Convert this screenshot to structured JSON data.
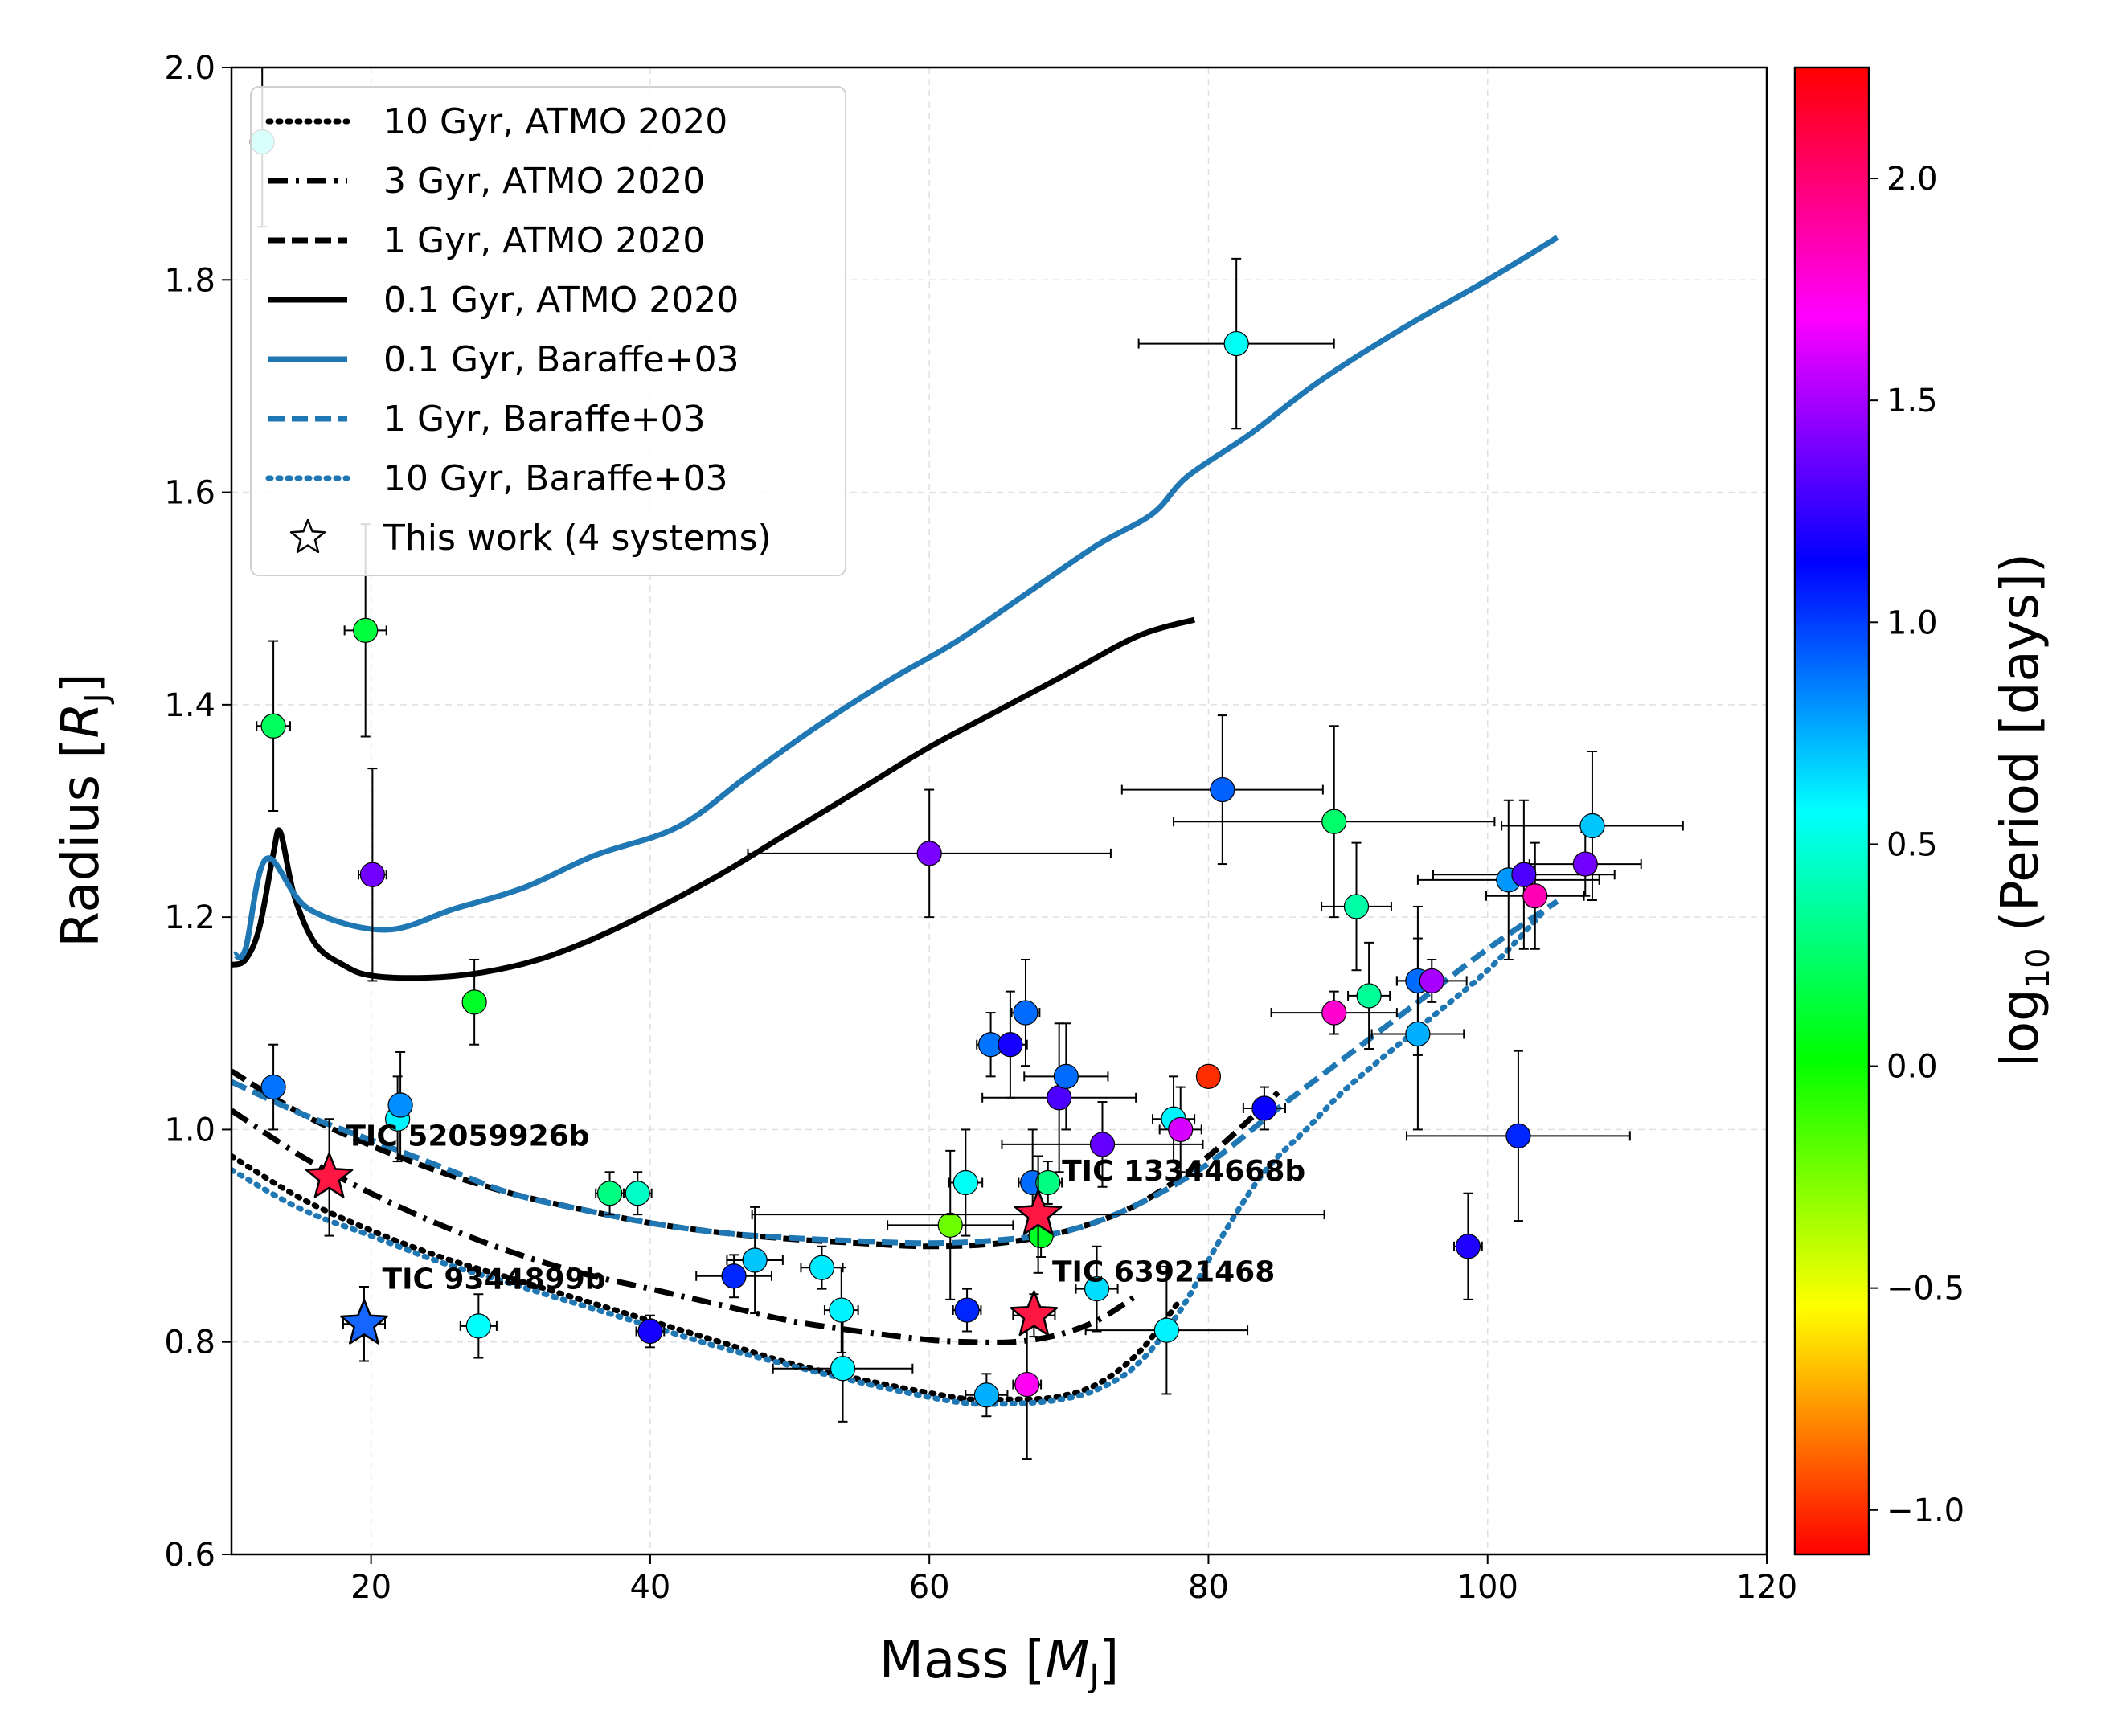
{
  "chart_data": {
    "type": "scatter",
    "title": "",
    "xlabel": "Mass [",
    "xlabel_sym": "M",
    "xlabel_sub": "J",
    "xlabel_end": "]",
    "ylabel": "Radius [",
    "ylabel_sym": "R",
    "ylabel_sub": "J",
    "ylabel_end": "]",
    "xlim": [
      10,
      120
    ],
    "ylim": [
      0.6,
      2.0
    ],
    "xticks": [
      20,
      40,
      60,
      80,
      100,
      120
    ],
    "xtick_labels": [
      "20",
      "40",
      "60",
      "80",
      "100",
      "120"
    ],
    "yticks": [
      0.6,
      0.8,
      1.0,
      1.2,
      1.4,
      1.6,
      1.8,
      2.0
    ],
    "ytick_labels": [
      "0.6",
      "0.8",
      "1.0",
      "1.2",
      "1.4",
      "1.6",
      "1.8",
      "2.0"
    ],
    "grid": true,
    "legend_position": "top-left",
    "colorbar": {
      "label_pre": "log",
      "label_sub": "10",
      "label_post": " (Period [days])",
      "range": [
        -1.1,
        2.25
      ],
      "ticks": [
        -1.0,
        -0.5,
        0.0,
        0.5,
        1.0,
        1.5,
        2.0
      ],
      "tick_labels": [
        "−1.0",
        "−0.5",
        "0.0",
        "0.5",
        "1.0",
        "1.5",
        "2.0"
      ]
    },
    "series": [
      {
        "name": "10 Gyr, ATMO 2020",
        "color": "#000000",
        "style": "dotted",
        "x": [
          10,
          15,
          20,
          25,
          30,
          35,
          40,
          45,
          50,
          55,
          60,
          63,
          66,
          69,
          72,
          75,
          78
        ],
        "y": [
          0.975,
          0.935,
          0.905,
          0.88,
          0.86,
          0.84,
          0.82,
          0.8,
          0.78,
          0.765,
          0.752,
          0.746,
          0.746,
          0.748,
          0.76,
          0.79,
          0.84
        ]
      },
      {
        "name": "3 Gyr, ATMO 2020",
        "color": "#000000",
        "style": "dashdot",
        "x": [
          10,
          15,
          20,
          25,
          30,
          35,
          40,
          45,
          50,
          55,
          60,
          63,
          66,
          69,
          72,
          75
        ],
        "y": [
          1.018,
          0.975,
          0.94,
          0.91,
          0.885,
          0.865,
          0.85,
          0.835,
          0.82,
          0.81,
          0.802,
          0.8,
          0.8,
          0.806,
          0.82,
          0.845
        ]
      },
      {
        "name": "1 Gyr, ATMO 2020",
        "color": "#000000",
        "style": "dashed",
        "x": [
          10,
          15,
          20,
          25,
          30,
          35,
          40,
          45,
          50,
          55,
          60,
          65,
          70,
          75,
          80,
          85
        ],
        "y": [
          1.055,
          1.015,
          0.985,
          0.96,
          0.94,
          0.925,
          0.912,
          0.903,
          0.897,
          0.893,
          0.89,
          0.893,
          0.905,
          0.93,
          0.975,
          1.035
        ]
      },
      {
        "name": "0.1 Gyr, ATMO 2020",
        "color": "#000000",
        "style": "solid",
        "x": [
          10,
          11,
          12,
          13,
          13.5,
          14.5,
          16,
          18,
          20,
          24,
          28,
          32,
          36,
          40,
          45,
          50,
          55,
          60,
          65,
          70,
          75,
          79
        ],
        "y": [
          1.155,
          1.16,
          1.19,
          1.26,
          1.28,
          1.22,
          1.175,
          1.155,
          1.145,
          1.143,
          1.148,
          1.16,
          1.18,
          1.205,
          1.24,
          1.28,
          1.32,
          1.36,
          1.395,
          1.43,
          1.465,
          1.48
        ]
      },
      {
        "name": "0.1 Gyr, Baraffe+03",
        "color": "#1f77b4",
        "style": "solid",
        "x": [
          10.2,
          11,
          12.5,
          15.5,
          21,
          26,
          31,
          36,
          42,
          47,
          52,
          57,
          62,
          67,
          72,
          76,
          78.5,
          83,
          88,
          94,
          100,
          105
        ],
        "y": [
          1.165,
          1.17,
          1.255,
          1.208,
          1.188,
          1.208,
          1.228,
          1.258,
          1.285,
          1.333,
          1.38,
          1.422,
          1.46,
          1.505,
          1.55,
          1.58,
          1.615,
          1.655,
          1.705,
          1.755,
          1.8,
          1.84
        ]
      },
      {
        "name": "1 Gyr, Baraffe+03",
        "color": "#1f77b4",
        "style": "dashed",
        "x": [
          10,
          15,
          20,
          25,
          30,
          35,
          40,
          45,
          50,
          55,
          60,
          65,
          70,
          75,
          80,
          85,
          90,
          95,
          100,
          105
        ],
        "y": [
          1.045,
          1.015,
          0.99,
          0.965,
          0.94,
          0.925,
          0.912,
          0.903,
          0.898,
          0.895,
          0.893,
          0.896,
          0.905,
          0.93,
          0.968,
          1.02,
          1.07,
          1.12,
          1.17,
          1.215
        ]
      },
      {
        "name": "10 Gyr, Baraffe+03",
        "color": "#1f77b4",
        "style": "dotted",
        "x": [
          10,
          15,
          20,
          25,
          30,
          35,
          40,
          45,
          50,
          55,
          60,
          63,
          66,
          69,
          72,
          75,
          78,
          81,
          84,
          87,
          90,
          95,
          100,
          104
        ],
        "y": [
          0.962,
          0.925,
          0.9,
          0.875,
          0.855,
          0.835,
          0.815,
          0.795,
          0.778,
          0.762,
          0.748,
          0.742,
          0.742,
          0.745,
          0.755,
          0.78,
          0.83,
          0.9,
          0.96,
          1.0,
          1.04,
          1.095,
          1.15,
          1.205
        ]
      }
    ],
    "points": [
      {
        "x": 12.2,
        "y": 1.93,
        "xerr": 0.0,
        "yerr": 0.08,
        "logP": 0.52
      },
      {
        "x": 13.0,
        "y": 1.38,
        "xerr": 1.2,
        "yerr": 0.08,
        "logP": 0.22
      },
      {
        "x": 19.6,
        "y": 1.47,
        "xerr": 1.5,
        "yerr": 0.1,
        "logP": 0.15
      },
      {
        "x": 20.1,
        "y": 1.24,
        "xerr": 1.0,
        "yerr": 0.1,
        "logP": 1.38
      },
      {
        "x": 13.0,
        "y": 1.04,
        "xerr": 0.0,
        "yerr": 0.04,
        "logP": 0.88
      },
      {
        "x": 21.9,
        "y": 1.01,
        "xerr": 0.0,
        "yerr": 0.04,
        "logP": 0.6
      },
      {
        "x": 22.1,
        "y": 1.023,
        "xerr": 0.7,
        "yerr": 0.05,
        "logP": 0.82
      },
      {
        "x": 27.4,
        "y": 1.12,
        "xerr": 0.8,
        "yerr": 0.04,
        "logP": 0.1
      },
      {
        "x": 37.1,
        "y": 0.94,
        "xerr": 1.0,
        "yerr": 0.02,
        "logP": 0.3
      },
      {
        "x": 39.1,
        "y": 0.94,
        "xerr": 1.0,
        "yerr": 0.02,
        "logP": 0.45
      },
      {
        "x": 27.7,
        "y": 0.815,
        "xerr": 1.3,
        "yerr": 0.03,
        "logP": 0.57
      },
      {
        "x": 40.0,
        "y": 0.81,
        "xerr": 1.0,
        "yerr": 0.015,
        "logP": 1.18
      },
      {
        "x": 46.0,
        "y": 0.862,
        "xerr": 2.7,
        "yerr": 0.02,
        "logP": 1.05
      },
      {
        "x": 47.5,
        "y": 0.877,
        "xerr": 2.0,
        "yerr": 0.05,
        "logP": 0.7
      },
      {
        "x": 52.3,
        "y": 0.87,
        "xerr": 1.5,
        "yerr": 0.02,
        "logP": 0.62
      },
      {
        "x": 53.7,
        "y": 0.83,
        "xerr": 1.2,
        "yerr": 0.04,
        "logP": 0.6
      },
      {
        "x": 53.8,
        "y": 0.775,
        "xerr": 5.0,
        "yerr": 0.05,
        "logP": 0.6
      },
      {
        "x": 60.0,
        "y": 1.26,
        "xerr": 13.0,
        "yerr": 0.06,
        "logP": 1.4
      },
      {
        "x": 61.5,
        "y": 0.91,
        "xerr": 4.5,
        "yerr": 0.07,
        "logP": -0.22
      },
      {
        "x": 62.6,
        "y": 0.95,
        "xerr": 1.2,
        "yerr": 0.05,
        "logP": 0.55
      },
      {
        "x": 62.7,
        "y": 0.83,
        "xerr": 1.0,
        "yerr": 0.02,
        "logP": 1.05
      },
      {
        "x": 64.1,
        "y": 0.75,
        "xerr": 1.5,
        "yerr": 0.02,
        "logP": 0.75
      },
      {
        "x": 64.4,
        "y": 1.08,
        "xerr": 1.0,
        "yerr": 0.03,
        "logP": 0.88
      },
      {
        "x": 65.8,
        "y": 1.08,
        "xerr": 1.2,
        "yerr": 0.05,
        "logP": 1.18
      },
      {
        "x": 66.9,
        "y": 1.11,
        "xerr": 1.0,
        "yerr": 0.05,
        "logP": 0.9
      },
      {
        "x": 67.0,
        "y": 0.76,
        "xerr": 1.0,
        "yerr": 0.07,
        "logP": 1.72
      },
      {
        "x": 67.4,
        "y": 0.95,
        "xerr": 1.0,
        "yerr": 0.05,
        "logP": 0.9
      },
      {
        "x": 68.0,
        "y": 0.9,
        "xerr": 0.5,
        "yerr": 0.02,
        "logP": 0.1
      },
      {
        "x": 68.5,
        "y": 0.95,
        "xerr": 1.0,
        "yerr": 0.02,
        "logP": 0.3
      },
      {
        "x": 69.3,
        "y": 1.03,
        "xerr": 5.5,
        "yerr": 0.07,
        "logP": 1.3
      },
      {
        "x": 69.8,
        "y": 1.05,
        "xerr": 3.0,
        "yerr": 0.05,
        "logP": 0.9
      },
      {
        "x": 72.4,
        "y": 0.986,
        "xerr": 7.2,
        "yerr": 0.04,
        "logP": 1.35
      },
      {
        "x": 72.0,
        "y": 0.85,
        "xerr": 1.5,
        "yerr": 0.04,
        "logP": 0.65
      },
      {
        "x": 77.0,
        "y": 0.811,
        "xerr": 5.8,
        "yerr": 0.06,
        "logP": 0.6
      },
      {
        "x": 77.5,
        "y": 1.01,
        "xerr": 1.5,
        "yerr": 0.04,
        "logP": 0.6
      },
      {
        "x": 78.0,
        "y": 1.0,
        "xerr": 1.5,
        "yerr": 0.04,
        "logP": 1.6
      },
      {
        "x": 80.0,
        "y": 1.05,
        "xerr": 0.3,
        "yerr": 0.005,
        "logP": -1.0
      },
      {
        "x": 81.0,
        "y": 1.32,
        "xerr": 7.2,
        "yerr": 0.07,
        "logP": 0.92
      },
      {
        "x": 82.0,
        "y": 1.74,
        "xerr": 7.0,
        "yerr": 0.08,
        "logP": 0.55
      },
      {
        "x": 84.0,
        "y": 1.02,
        "xerr": 1.5,
        "yerr": 0.02,
        "logP": 1.15
      },
      {
        "x": 89.0,
        "y": 1.29,
        "xerr": 11.5,
        "yerr": 0.09,
        "logP": 0.25
      },
      {
        "x": 89.0,
        "y": 1.11,
        "xerr": 4.5,
        "yerr": 0.02,
        "logP": 1.8
      },
      {
        "x": 90.6,
        "y": 1.21,
        "xerr": 2.5,
        "yerr": 0.06,
        "logP": 0.38
      },
      {
        "x": 91.5,
        "y": 1.126,
        "xerr": 1.5,
        "yerr": 0.05,
        "logP": 0.35
      },
      {
        "x": 95.0,
        "y": 1.14,
        "xerr": 1.5,
        "yerr": 0.07,
        "logP": 0.9
      },
      {
        "x": 95.0,
        "y": 1.09,
        "xerr": 3.3,
        "yerr": 0.09,
        "logP": 0.75
      },
      {
        "x": 96.0,
        "y": 1.14,
        "xerr": 2.5,
        "yerr": 0.02,
        "logP": 1.5
      },
      {
        "x": 98.6,
        "y": 0.89,
        "xerr": 1.0,
        "yerr": 0.05,
        "logP": 1.2
      },
      {
        "x": 101.5,
        "y": 1.235,
        "xerr": 6.5,
        "yerr": 0.075,
        "logP": 0.8
      },
      {
        "x": 102.2,
        "y": 0.994,
        "xerr": 8.0,
        "yerr": 0.08,
        "logP": 1.05
      },
      {
        "x": 102.6,
        "y": 1.24,
        "xerr": 6.5,
        "yerr": 0.07,
        "logP": 1.3
      },
      {
        "x": 103.4,
        "y": 1.22,
        "xerr": 3.5,
        "yerr": 0.05,
        "logP": 1.85
      },
      {
        "x": 107.0,
        "y": 1.25,
        "xerr": 4.0,
        "yerr": 0.03,
        "logP": 1.38
      },
      {
        "x": 107.5,
        "y": 1.286,
        "xerr": 6.5,
        "yerr": 0.07,
        "logP": 0.7
      }
    ],
    "this_work": [
      {
        "label": "TIC 52059926b",
        "x": 17.0,
        "y": 0.955,
        "xerr": 0.5,
        "yerr": 0.055,
        "color": "#ff1744",
        "lx": 18.2,
        "ly": 0.985
      },
      {
        "label": "TIC 13344668b",
        "x": 67.8,
        "y": 0.92,
        "xerr": 20.5,
        "yerr": 0.055,
        "color": "#ff1744",
        "lx": 69.5,
        "ly": 0.952
      },
      {
        "label": "TIC 63921468",
        "x": 67.5,
        "y": 0.825,
        "xerr": 1.5,
        "yerr": 0.02,
        "color": "#ff1744",
        "lx": 68.8,
        "ly": 0.857
      },
      {
        "label": "TIC 9344899b",
        "x": 19.5,
        "y": 0.817,
        "xerr": 1.5,
        "yerr": 0.035,
        "color": "#1565ff",
        "lx": 20.8,
        "ly": 0.85
      }
    ],
    "legend": [
      {
        "label": "10 Gyr, ATMO 2020",
        "color": "#000000",
        "style": "dotted"
      },
      {
        "label": "3 Gyr, ATMO 2020",
        "color": "#000000",
        "style": "dashdot"
      },
      {
        "label": "1 Gyr, ATMO 2020",
        "color": "#000000",
        "style": "dashed"
      },
      {
        "label": "0.1 Gyr, ATMO 2020",
        "color": "#000000",
        "style": "solid"
      },
      {
        "label": "0.1 Gyr, Baraffe+03",
        "color": "#1f77b4",
        "style": "solid"
      },
      {
        "label": "1 Gyr, Baraffe+03",
        "color": "#1f77b4",
        "style": "dashed"
      },
      {
        "label": "10 Gyr, Baraffe+03",
        "color": "#1f77b4",
        "style": "dotted"
      },
      {
        "label": "This work (4 systems)",
        "color": "#000000",
        "style": "star"
      }
    ]
  }
}
